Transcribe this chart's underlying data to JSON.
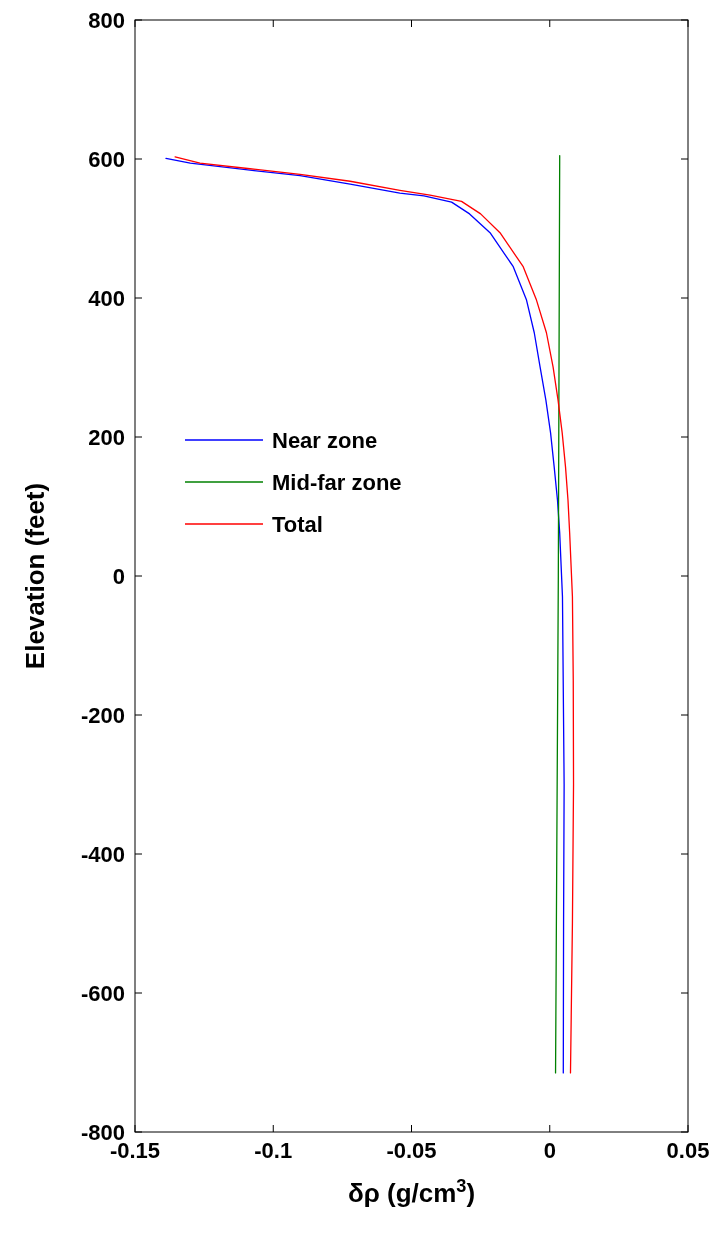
{
  "chart_data": {
    "type": "line",
    "xlabel": "δρ (g/cm$^{3}$)",
    "ylabel": "Elevation (feet)",
    "xlim": [
      -0.15,
      0.05
    ],
    "xticks": [
      -0.15,
      -0.1,
      -0.05,
      0,
      0.05
    ],
    "ylim": [
      -800,
      800
    ],
    "yticks": [
      -800,
      -600,
      -400,
      -200,
      0,
      200,
      400,
      600,
      800
    ],
    "grid": false,
    "legend": "left",
    "marker": "none",
    "line_style": "solid",
    "series": [
      {
        "name": "Near zone",
        "color": "#0000ff",
        "x": [
          -0.1388,
          -0.13,
          -0.1084,
          -0.0903,
          -0.0722,
          -0.0542,
          -0.0455,
          -0.0355,
          -0.029,
          -0.0216,
          -0.0132,
          -0.0084,
          -0.0056,
          -0.0035,
          -0.0014,
          0.0003,
          0.0016,
          0.0028,
          0.0036,
          0.0046,
          0.0052,
          0.005,
          0.0049
        ],
        "values": [
          601,
          594,
          584,
          576,
          564,
          551,
          547,
          538,
          521,
          494,
          445,
          397,
          350,
          301,
          253,
          206,
          157,
          109,
          62,
          -30,
          -300,
          -500,
          -715
        ]
      },
      {
        "name": "Mid-far zone",
        "color": "#008000",
        "x": [
          0.0036,
          0.0031,
          0.0021
        ],
        "values": [
          605,
          0,
          -715
        ]
      },
      {
        "name": "Total",
        "color": "#ff0000",
        "x": [
          -0.1355,
          -0.1265,
          -0.1084,
          -0.0903,
          -0.0722,
          -0.0542,
          -0.0433,
          -0.0319,
          -0.025,
          -0.018,
          -0.0096,
          -0.0048,
          -0.0012,
          0.0012,
          0.003,
          0.0045,
          0.0057,
          0.0066,
          0.0072,
          0.0082,
          0.0085,
          0.0086,
          0.0082,
          0.0075
        ],
        "values": [
          603,
          594,
          586,
          578,
          568,
          555,
          548,
          539,
          521,
          494,
          445,
          397,
          350,
          301,
          253,
          206,
          157,
          109,
          62,
          -30,
          -150,
          -300,
          -500,
          -715
        ]
      }
    ]
  }
}
